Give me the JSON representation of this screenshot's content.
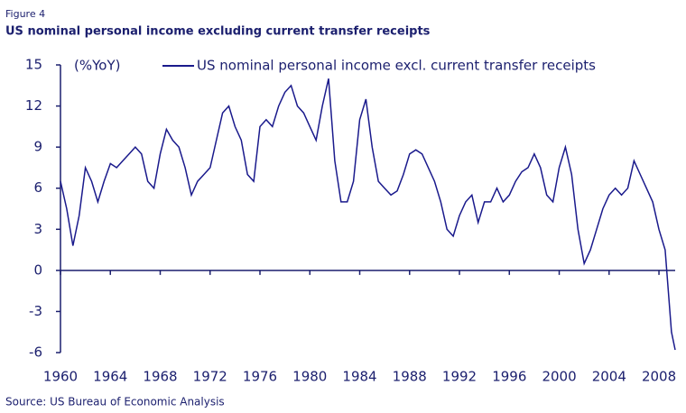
{
  "chart_data": {
    "type": "line",
    "figure_label": "Figure 4",
    "title": "US nominal personal income excluding current transfer receipts",
    "y_label": "(%YoY)",
    "source": "Source: US Bureau of Economic Analysis",
    "x": [
      1960,
      1960.5,
      1961,
      1961.5,
      1962,
      1962.5,
      1963,
      1963.5,
      1964,
      1964.5,
      1965,
      1965.5,
      1966,
      1966.5,
      1967,
      1967.5,
      1968,
      1968.5,
      1969,
      1969.5,
      1970,
      1970.5,
      1971,
      1971.5,
      1972,
      1972.5,
      1973,
      1973.5,
      1974,
      1974.5,
      1975,
      1975.5,
      1976,
      1976.5,
      1977,
      1977.5,
      1978,
      1978.5,
      1979,
      1979.5,
      1980,
      1980.5,
      1981,
      1981.5,
      1982,
      1982.5,
      1983,
      1983.5,
      1984,
      1984.5,
      1985,
      1985.5,
      1986,
      1986.5,
      1987,
      1987.5,
      1988,
      1988.5,
      1989,
      1989.5,
      1990,
      1990.5,
      1991,
      1991.5,
      1992,
      1992.5,
      1993,
      1993.5,
      1994,
      1994.5,
      1995,
      1995.5,
      1996,
      1996.5,
      1997,
      1997.5,
      1998,
      1998.5,
      1999,
      1999.5,
      2000,
      2000.5,
      2001,
      2001.5,
      2002,
      2002.5,
      2003,
      2003.5,
      2004,
      2004.5,
      2005,
      2005.5,
      2006,
      2006.5,
      2007,
      2007.5,
      2008,
      2008.5,
      2009,
      2009.3
    ],
    "series": [
      {
        "name": "US nominal personal income excl. current transfer receipts",
        "color": "#1a1a8c",
        "values": [
          6.5,
          4.5,
          1.8,
          4,
          7.5,
          6.5,
          5,
          6.5,
          7.8,
          7.5,
          8,
          8.5,
          9,
          8.5,
          6.5,
          6,
          8.5,
          10.3,
          9.5,
          9,
          7.5,
          5.5,
          6.5,
          7,
          7.5,
          9.5,
          11.5,
          12,
          10.5,
          9.5,
          7,
          6.5,
          10.5,
          11,
          10.5,
          12,
          13,
          13.5,
          12,
          11.5,
          10.5,
          9.5,
          12,
          14,
          8,
          5,
          5,
          6.5,
          11,
          12.5,
          9,
          6.5,
          6,
          5.5,
          5.8,
          7,
          8.5,
          8.8,
          8.5,
          7.5,
          6.5,
          5,
          3,
          2.5,
          4,
          5,
          5.5,
          3.5,
          5,
          5,
          6,
          5,
          5.5,
          6.5,
          7.2,
          7.5,
          8.5,
          7.5,
          5.5,
          5,
          7.5,
          9,
          7,
          3,
          0.5,
          1.5,
          3,
          4.5,
          5.5,
          6,
          5.5,
          6,
          8,
          7,
          6,
          5,
          3,
          1.5,
          -4.5,
          -5.8
        ]
      }
    ],
    "xlim": [
      1960,
      2009.3
    ],
    "xticks": [
      1960,
      1964,
      1968,
      1972,
      1976,
      1980,
      1984,
      1988,
      1992,
      1996,
      2000,
      2004,
      2008
    ],
    "ylim": [
      -6,
      15
    ],
    "yticks": [
      -6,
      -3,
      0,
      3,
      6,
      9,
      12,
      15
    ]
  }
}
